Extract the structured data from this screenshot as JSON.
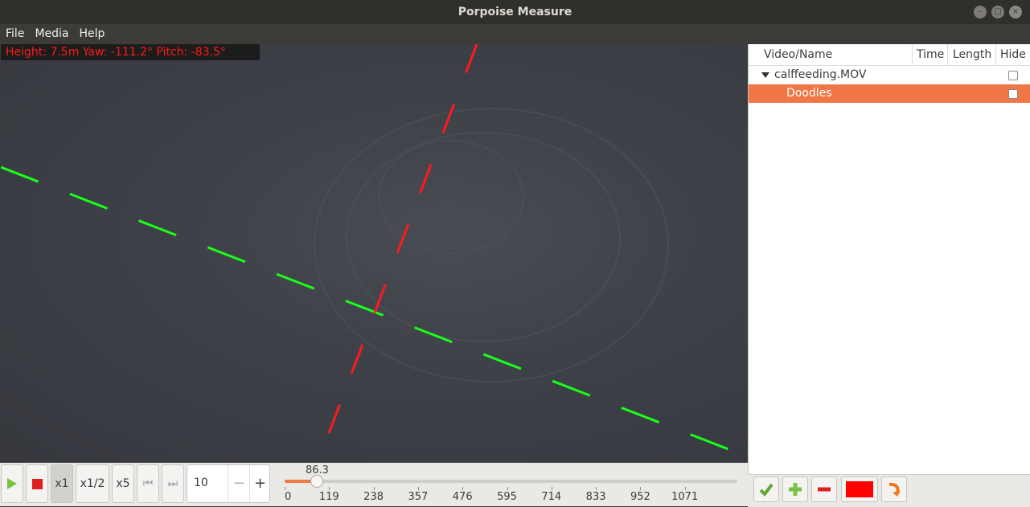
{
  "window": {
    "title": "Porpoise Measure"
  },
  "menu": {
    "items": [
      "File",
      "Media",
      "Help"
    ]
  },
  "video": {
    "overlay_text": "Height: 7.5m Yaw: -111.2° Pitch: -83.5°"
  },
  "tree": {
    "headers": {
      "name": "Video/Name",
      "time": "Time",
      "length": "Length",
      "hide": "Hide"
    },
    "video": {
      "name": "calffeeding.MOV",
      "hidden": false
    },
    "item": {
      "name": "Doodles",
      "hidden": false,
      "selected": true
    }
  },
  "controls": {
    "speed_x1": "x1",
    "speed_half": "x1/2",
    "speed_x5": "x5",
    "step_value": "10",
    "step_minus": "−",
    "step_plus": "+"
  },
  "timeline": {
    "current_label": "86.3",
    "current": 86.3,
    "max": 1190,
    "ticks": [
      "0",
      "119",
      "238",
      "357",
      "476",
      "595",
      "714",
      "833",
      "952",
      "1071"
    ]
  },
  "colors": {
    "accent": "#f07746",
    "line_color": "#ff0000",
    "green_line": "#1aff1a"
  }
}
